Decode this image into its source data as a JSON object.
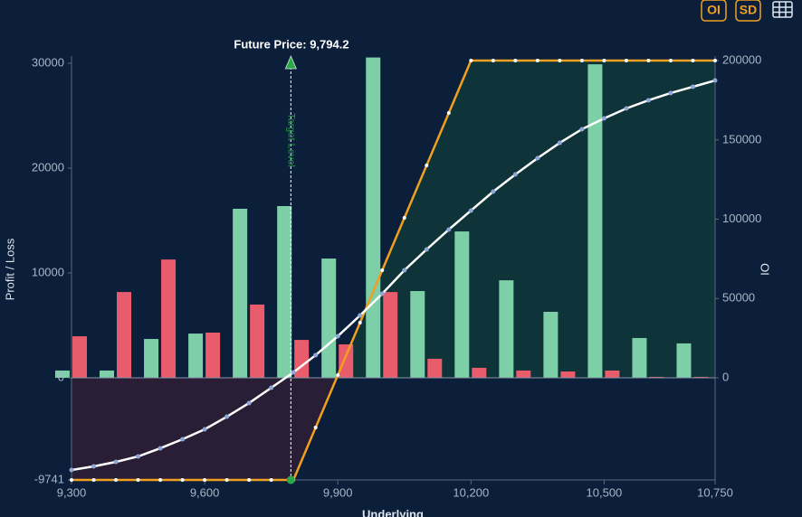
{
  "chart_data": {
    "type": "payoff",
    "title": "Future Price: 9,794.2",
    "future_price": 9794.2,
    "annotation": "Target Level",
    "x_label": "Underlying",
    "y_label": "Profit / Loss",
    "y2_label": "OI",
    "toolbar": [
      "OI",
      "SD"
    ],
    "xlim": [
      9300,
      10750
    ],
    "xticks": [
      {
        "value": 9300,
        "label": "9,300"
      },
      {
        "value": 9600,
        "label": "9,600"
      },
      {
        "value": 9900,
        "label": "9,900"
      },
      {
        "value": 10200,
        "label": "10,200"
      },
      {
        "value": 10500,
        "label": "10,500"
      },
      {
        "value": 10750,
        "label": "10,750"
      }
    ],
    "ylim": [
      -9741,
      30690
    ],
    "yticks": [
      -9741,
      0,
      10000,
      20000,
      30000
    ],
    "y2lim": [
      -64400,
      202900
    ],
    "y2ticks": [
      0,
      50000,
      100000,
      150000,
      200000
    ],
    "series": [
      {
        "type": "bar",
        "axis": "y2",
        "color": "#7dcfa8",
        "x": [
          9300,
          9400,
          9500,
          9600,
          9700,
          9800,
          9900,
          10000,
          10100,
          10200,
          10300,
          10400,
          10500,
          10600,
          10700
        ],
        "values": [
          4600,
          4600,
          24500,
          27900,
          106600,
          108300,
          75200,
          202000,
          54700,
          92300,
          61500,
          41600,
          197700,
          25100,
          21700
        ]
      },
      {
        "type": "bar",
        "axis": "y2",
        "color": "#e85c6c",
        "x": [
          9300,
          9400,
          9500,
          9600,
          9700,
          9800,
          9900,
          10000,
          10100,
          10200,
          10300,
          10400,
          10500,
          10600,
          10700
        ],
        "values": [
          26200,
          54100,
          74600,
          28500,
          46200,
          23900,
          21100,
          54100,
          12000,
          6300,
          4600,
          4000,
          4600,
          600,
          600
        ]
      },
      {
        "type": "payoff",
        "color": "#f0a020",
        "x": [
          9300,
          9350,
          9400,
          9450,
          9500,
          9550,
          9600,
          9650,
          9700,
          9750,
          9800,
          9850,
          9900,
          9950,
          10000,
          10050,
          10100,
          10150,
          10200,
          10250,
          10300,
          10350,
          10400,
          10450,
          10500,
          10550,
          10600,
          10650,
          10700,
          10750
        ],
        "values": [
          -9741,
          -9741,
          -9741,
          -9741,
          -9741,
          -9741,
          -9741,
          -9741,
          -9741,
          -9741,
          -9741,
          -4741,
          259,
          5259,
          10259,
          15259,
          20259,
          25259,
          30259,
          30259,
          30259,
          30259,
          30259,
          30259,
          30259,
          30259,
          30259,
          30259,
          30259,
          30259
        ]
      },
      {
        "type": "line",
        "color": "#ffffff",
        "x": [
          9300,
          9350,
          9400,
          9450,
          9500,
          9550,
          9600,
          9650,
          9700,
          9750,
          9800,
          9850,
          9900,
          9950,
          10000,
          10050,
          10100,
          10150,
          10200,
          10250,
          10300,
          10350,
          10400,
          10450,
          10500,
          10550,
          10600,
          10650,
          10700,
          10750
        ],
        "values": [
          -8790,
          -8450,
          -8020,
          -7500,
          -6720,
          -5860,
          -4910,
          -3710,
          -2410,
          -950,
          520,
          2160,
          3970,
          5950,
          8020,
          10260,
          12240,
          14140,
          15950,
          17760,
          19400,
          20950,
          22410,
          23710,
          24740,
          25690,
          26470,
          27160,
          27760,
          28360
        ]
      }
    ]
  }
}
